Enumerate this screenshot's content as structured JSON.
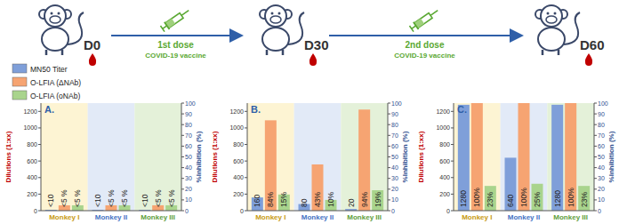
{
  "chart_data": [
    {
      "type": "bar",
      "title": "A.",
      "categories": [
        "Monkey I",
        "Monkey II",
        "Monkey III"
      ],
      "y_label": "Dilutions (1:xx)",
      "y2_label": "%Inhibition (%)",
      "ylim": [
        0,
        1300
      ],
      "yticks": [
        0,
        200,
        400,
        600,
        800,
        1000,
        1200
      ],
      "y2lim": [
        0,
        100
      ],
      "y2ticks": [
        0,
        10,
        20,
        30,
        40,
        50,
        60,
        70,
        80,
        90,
        100
      ],
      "data_labels": true,
      "legend": "top-left",
      "series": [
        {
          "name": "MN50 Titer",
          "color": "#7f9fd9",
          "values": [
            10,
            10,
            10
          ],
          "value_labels": [
            "<10",
            "<10",
            "<10"
          ]
        },
        {
          "name": "O-LFIA (ΔNAb)",
          "color": "#f6a472",
          "axis": "y2",
          "values": [
            5,
            5,
            5
          ],
          "value_labels": [
            "<5 %",
            "<5 %",
            "<5 %"
          ]
        },
        {
          "name": "O-LFIA (oNAb)",
          "color": "#a9d48d",
          "axis": "y2",
          "values": [
            5,
            5,
            5
          ],
          "value_labels": [
            "<5 %",
            "<5 %",
            "<5 %"
          ]
        }
      ]
    },
    {
      "type": "bar",
      "title": "B.",
      "categories": [
        "Monkey I",
        "Monkey II",
        "Monkey III"
      ],
      "y_label": "Dilutions (1:xx)",
      "y2_label": "%Inhibition (%)",
      "ylim": [
        0,
        1300
      ],
      "yticks": [
        0,
        200,
        400,
        600,
        800,
        1000,
        1200
      ],
      "y2lim": [
        0,
        100
      ],
      "y2ticks": [
        0,
        10,
        20,
        30,
        40,
        50,
        60,
        70,
        80,
        90,
        100
      ],
      "data_labels": true,
      "series": [
        {
          "name": "MN50 Titer",
          "color": "#7f9fd9",
          "values": [
            160,
            80,
            20
          ]
        },
        {
          "name": "O-LFIA (ΔNAb)",
          "color": "#f6a472",
          "axis": "y2",
          "values": [
            84,
            43,
            94
          ],
          "value_labels": [
            "84%",
            "43%",
            "94%"
          ]
        },
        {
          "name": "O-LFIA (oNAb)",
          "color": "#a9d48d",
          "axis": "y2",
          "values": [
            15,
            10,
            19
          ],
          "value_labels": [
            "15%",
            "10%",
            "19%"
          ]
        }
      ]
    },
    {
      "type": "bar",
      "title": "C.",
      "categories": [
        "Monkey I",
        "Monkey II",
        "Monkey III"
      ],
      "y_label": "Dilutions (1:xx)",
      "y2_label": "%Inhibition (%)",
      "ylim": [
        0,
        1300
      ],
      "yticks": [
        0,
        200,
        400,
        600,
        800,
        1000,
        1200
      ],
      "y2lim": [
        0,
        100
      ],
      "y2ticks": [
        0,
        10,
        20,
        30,
        40,
        50,
        60,
        70,
        80,
        90,
        100
      ],
      "data_labels": true,
      "series": [
        {
          "name": "MN50 Titer",
          "color": "#7f9fd9",
          "values": [
            1280,
            640,
            1280
          ]
        },
        {
          "name": "O-LFIA (ΔNAb)",
          "color": "#f6a472",
          "axis": "y2",
          "values": [
            100,
            100,
            100
          ],
          "value_labels": [
            "100%",
            "100%",
            "100%"
          ]
        },
        {
          "name": "O-LFIA (oNAb)",
          "color": "#a9d48d",
          "axis": "y2",
          "values": [
            23,
            25,
            23
          ],
          "value_labels": [
            "23%",
            "25%",
            "23%"
          ]
        }
      ]
    }
  ],
  "timeline": {
    "days": [
      "D0",
      "D30",
      "D60"
    ],
    "doses": [
      {
        "label": "1st dose",
        "vaccine": "COVID-19 vaccine"
      },
      {
        "label": "2nd dose",
        "vaccine": "COVID-19 vaccine"
      }
    ]
  }
}
